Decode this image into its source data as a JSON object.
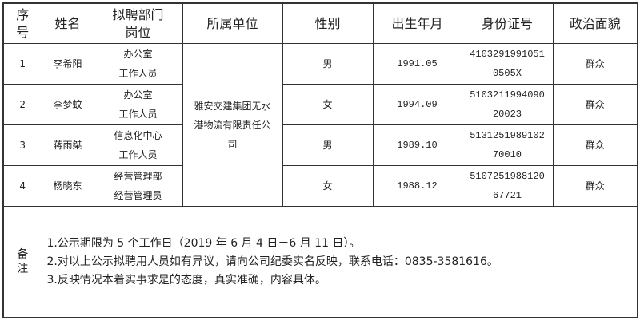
{
  "headers": {
    "seq": "序号",
    "name": "姓名",
    "post": "拟聘部门岗位",
    "unit": "所属单位",
    "gender": "性别",
    "birth": "出生年月",
    "id": "身份证号",
    "politics": "政治面貌"
  },
  "unit": "雅安交建集团无水港物流有限责任公司",
  "rows": [
    {
      "seq": "1",
      "name": "李希阳",
      "dept": "办公室",
      "role": "工作人员",
      "gender": "男",
      "birth": "1991.05",
      "id1": "4103291991051",
      "id2": "0505X",
      "politics": "群众"
    },
    {
      "seq": "2",
      "name": "李梦蚊",
      "dept": "办公室",
      "role": "工作人员",
      "gender": "女",
      "birth": "1994.09",
      "id1": "5103211994090",
      "id2": "20023",
      "politics": "群众"
    },
    {
      "seq": "3",
      "name": "蒋雨桀",
      "dept": "信息化中心",
      "role": "工作人员",
      "gender": "男",
      "birth": "1989.10",
      "id1": "5131251989102",
      "id2": "70010",
      "politics": "群众"
    },
    {
      "seq": "4",
      "name": "杨晓东",
      "dept": "经营管理部",
      "role": "经营管理员",
      "gender": "女",
      "birth": "1988.12",
      "id1": "5107251988120",
      "id2": "67721",
      "politics": "群众"
    }
  ],
  "remarks": {
    "label": "备注",
    "lines": [
      "1.公示期限为 5 个工作日（2019 年 6 月 4 日－6 月 11 日）。",
      "2.对以上公示拟聘用人员如有异议，请向公司纪委实名反映，联系电话：0835-3581616。",
      "3.反映情况本着实事求是的态度，真实准确，内容具体。"
    ]
  }
}
